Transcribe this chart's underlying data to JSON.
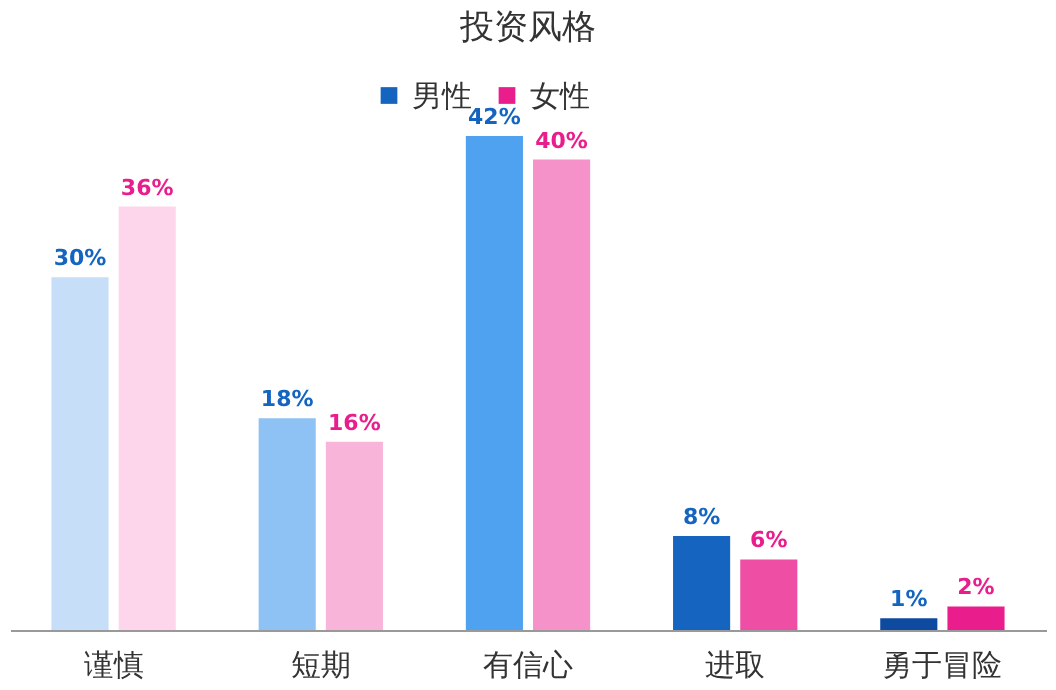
{
  "chart_data": {
    "type": "bar",
    "title": "投资风格",
    "categories": [
      "谨慎",
      "短期",
      "有信心",
      "进取",
      "勇于冒险"
    ],
    "legend": "top",
    "series": [
      {
        "name": "男性",
        "color": "#1565c0",
        "colors": [
          "#c6def8",
          "#8fc2f4",
          "#4ea2f0",
          "#1565c0",
          "#0d4aa0"
        ],
        "values": [
          30,
          18,
          42,
          8,
          1
        ],
        "value_labels": [
          "30%",
          "18%",
          "42%",
          "8%",
          "1%"
        ]
      },
      {
        "name": "女性",
        "color": "#e91e8c",
        "colors": [
          "#fdd6eb",
          "#f9b4d9",
          "#f492c9",
          "#ee4fa4",
          "#e91e8c"
        ],
        "values": [
          36,
          16,
          40,
          6,
          2
        ],
        "value_labels": [
          "36%",
          "16%",
          "40%",
          "6%",
          "2%"
        ]
      }
    ]
  }
}
